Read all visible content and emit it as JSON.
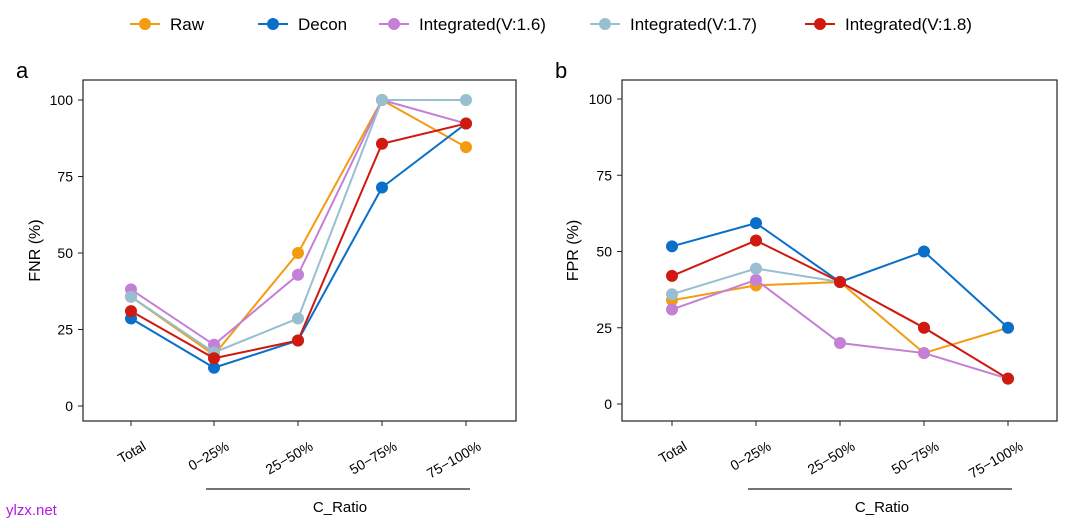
{
  "watermark": "ylzx.net",
  "colors": {
    "Raw": "#f39c12",
    "Decon": "#0a6fc9",
    "Integrated(V:1.6)": "#c47fd6",
    "Integrated(V:1.7)": "#97bfd0",
    "Integrated(V:1.8)": "#d0190f"
  },
  "legend": [
    "Raw",
    "Decon",
    "Integrated(V:1.6)",
    "Integrated(V:1.7)",
    "Integrated(V:1.8)"
  ],
  "chart_data": [
    {
      "type": "line",
      "panel": "a",
      "ylabel": "FNR (%)",
      "xlabel": "C_Ratio",
      "categories": [
        "Total",
        "0−25%",
        "25−50%",
        "50−75%",
        "75−100%"
      ],
      "yticks": [
        0,
        25,
        50,
        75,
        100
      ],
      "ylim": [
        0,
        100
      ],
      "series": [
        {
          "name": "Raw",
          "values": [
            35.7,
            16.7,
            50,
            100,
            84.6
          ]
        },
        {
          "name": "Decon",
          "values": [
            28.6,
            12.5,
            21.4,
            71.4,
            92.3
          ]
        },
        {
          "name": "Integrated(V:1.6)",
          "values": [
            38.1,
            20,
            42.9,
            100,
            92.3
          ]
        },
        {
          "name": "Integrated(V:1.7)",
          "values": [
            35.7,
            17.5,
            28.6,
            100,
            100
          ]
        },
        {
          "name": "Integrated(V:1.8)",
          "values": [
            31,
            15.6,
            21.4,
            85.7,
            92.3
          ]
        }
      ]
    },
    {
      "type": "line",
      "panel": "b",
      "ylabel": "FPR (%)",
      "xlabel": "C_Ratio",
      "categories": [
        "Total",
        "0−25%",
        "25−50%",
        "50−75%",
        "75−100%"
      ],
      "yticks": [
        0,
        25,
        50,
        75,
        100
      ],
      "ylim": [
        0,
        100
      ],
      "series": [
        {
          "name": "Raw",
          "values": [
            34,
            38.9,
            40,
            16.7,
            25
          ]
        },
        {
          "name": "Decon",
          "values": [
            51.7,
            59.3,
            40,
            50,
            25
          ]
        },
        {
          "name": "Integrated(V:1.6)",
          "values": [
            31,
            40.7,
            20,
            16.7,
            8.3
          ]
        },
        {
          "name": "Integrated(V:1.7)",
          "values": [
            36,
            44.4,
            40,
            25,
            8.3
          ]
        },
        {
          "name": "Integrated(V:1.8)",
          "values": [
            42,
            53.6,
            40,
            25,
            8.3
          ]
        }
      ]
    }
  ]
}
